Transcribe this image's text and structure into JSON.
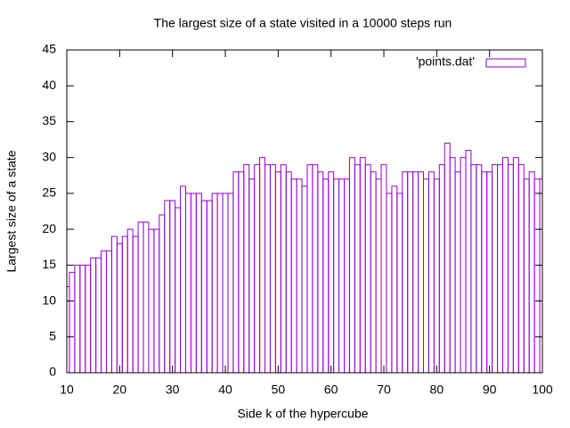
{
  "chart_data": {
    "type": "bar",
    "title": "The largest size of a state visited in a 10000 steps run",
    "x_label": "Side k of the hypercube",
    "y_label": "Largest size of a state",
    "x": [
      10,
      11,
      12,
      13,
      14,
      15,
      16,
      17,
      18,
      19,
      20,
      21,
      22,
      23,
      24,
      25,
      26,
      27,
      28,
      29,
      30,
      31,
      32,
      33,
      34,
      35,
      36,
      37,
      38,
      39,
      40,
      41,
      42,
      43,
      44,
      45,
      46,
      47,
      48,
      49,
      50,
      51,
      52,
      53,
      54,
      55,
      56,
      57,
      58,
      59,
      60,
      61,
      62,
      63,
      64,
      65,
      66,
      67,
      68,
      69,
      70,
      71,
      72,
      73,
      74,
      75,
      76,
      77,
      78,
      79,
      80,
      81,
      82,
      83,
      84,
      85,
      86,
      87,
      88,
      89,
      90,
      91,
      92,
      93,
      94,
      95,
      96,
      97,
      98,
      99,
      100
    ],
    "series": [
      {
        "name": "'points.dat'",
        "color": "#9400d3",
        "values": [
          12,
          14,
          15,
          15,
          15,
          16,
          16,
          17,
          17,
          19,
          18,
          19,
          20,
          19,
          21,
          21,
          20,
          20,
          22,
          24,
          24,
          23,
          26,
          25,
          25,
          25,
          24,
          24,
          25,
          25,
          25,
          25,
          28,
          28,
          29,
          27,
          29,
          30,
          29,
          29,
          28,
          29,
          28,
          27,
          27,
          26,
          29,
          29,
          28,
          27,
          28,
          27,
          27,
          27,
          30,
          29,
          30,
          29,
          28,
          27,
          29,
          25,
          26,
          25,
          28,
          28,
          28,
          28,
          27,
          28,
          27,
          29,
          32,
          30,
          28,
          30,
          31,
          29,
          29,
          28,
          28,
          29,
          29,
          30,
          29,
          30,
          29,
          27,
          28,
          27,
          27
        ]
      }
    ],
    "xlim": [
      10,
      100
    ],
    "xticks": [
      10,
      20,
      30,
      40,
      50,
      60,
      70,
      80,
      90,
      100
    ],
    "ylim": [
      0,
      45
    ],
    "yticks": [
      0,
      5,
      10,
      15,
      20,
      25,
      30,
      35,
      40,
      45
    ],
    "legend": "top-right"
  }
}
